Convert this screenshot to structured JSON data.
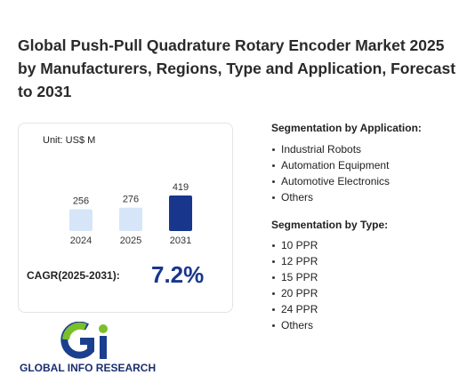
{
  "title": "Global Push-Pull Quadrature Rotary Encoder Market 2025 by Manufacturers, Regions, Type and Application, Forecast to 2031",
  "chart_data": {
    "type": "bar",
    "unit": "Unit: US$ M",
    "categories": [
      "2024",
      "2025",
      "2031"
    ],
    "values": [
      256,
      276,
      419
    ],
    "colors": [
      "#d6e6f8",
      "#d6e6f8",
      "#18378c"
    ]
  },
  "cagr": {
    "label": "CAGR(2025-2031):",
    "value": "7.2%"
  },
  "application": {
    "heading": "Segmentation by Application:",
    "items": [
      "Industrial Robots",
      "Automation Equipment",
      "Automotive Electronics",
      "Others"
    ]
  },
  "type_segment": {
    "heading": "Segmentation by Type:",
    "items": [
      "10 PPR",
      "12 PPR",
      "15 PPR",
      "20 PPR",
      "24 PPR",
      "Others"
    ]
  },
  "logo": {
    "text": "GLOBAL INFO RESEARCH"
  }
}
